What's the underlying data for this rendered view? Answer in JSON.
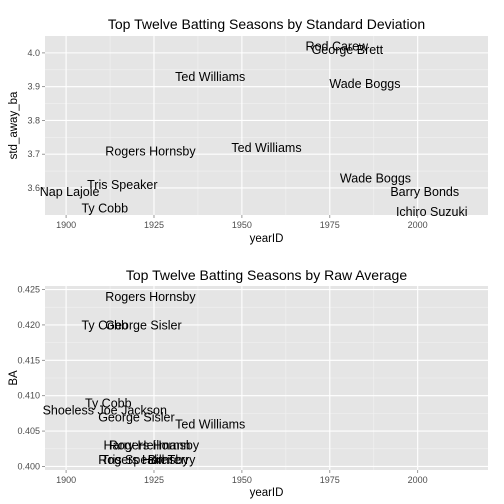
{
  "chart_data": [
    {
      "type": "scatter",
      "title": "Top Twelve Batting Seasons by Standard Deviation",
      "xlabel": "yearID",
      "ylabel": "std_away_ba",
      "xlim": [
        1894,
        2020
      ],
      "ylim": [
        3.52,
        4.05
      ],
      "x_ticks": [
        1900,
        1925,
        1950,
        1975,
        2000
      ],
      "y_ticks": [
        3.6,
        3.7,
        3.8,
        3.9,
        4.0
      ],
      "y_tick_labels": [
        "3.6",
        "3.7",
        "3.8",
        "3.9",
        "4.0"
      ],
      "grid": true,
      "points": [
        {
          "label": "Rod Carew",
          "x": 1977,
          "y": 4.02
        },
        {
          "label": "George Brett",
          "x": 1980,
          "y": 4.01
        },
        {
          "label": "Ted Williams",
          "x": 1941,
          "y": 3.93
        },
        {
          "label": "Wade Boggs",
          "x": 1985,
          "y": 3.91
        },
        {
          "label": "Rogers Hornsby",
          "x": 1924,
          "y": 3.71
        },
        {
          "label": "Ted Williams",
          "x": 1957,
          "y": 3.72
        },
        {
          "label": "Wade Boggs",
          "x": 1988,
          "y": 3.63
        },
        {
          "label": "Tris Speaker",
          "x": 1916,
          "y": 3.61
        },
        {
          "label": "Barry Bonds",
          "x": 2002,
          "y": 3.59
        },
        {
          "label": "Nap Lajoie",
          "x": 1901,
          "y": 3.59
        },
        {
          "label": "Ty Cobb",
          "x": 1911,
          "y": 3.54
        },
        {
          "label": "Ichiro Suzuki",
          "x": 2004,
          "y": 3.53
        }
      ]
    },
    {
      "type": "scatter",
      "title": "Top Twelve Batting Seasons by Raw Average",
      "xlabel": "yearID",
      "ylabel": "BA",
      "xlim": [
        1894,
        2020
      ],
      "ylim": [
        0.3995,
        0.4255
      ],
      "x_ticks": [
        1900,
        1925,
        1950,
        1975,
        2000
      ],
      "y_ticks": [
        0.4,
        0.405,
        0.41,
        0.415,
        0.42,
        0.425
      ],
      "y_tick_labels": [
        "0.400",
        "0.405",
        "0.410",
        "0.415",
        "0.420",
        "0.425"
      ],
      "grid": true,
      "points": [
        {
          "label": "Rogers Hornsby",
          "x": 1924,
          "y": 0.424
        },
        {
          "label": "Ty Cobb",
          "x": 1911,
          "y": 0.42
        },
        {
          "label": "George Sisler",
          "x": 1922,
          "y": 0.42
        },
        {
          "label": "Ty Cobb",
          "x": 1912,
          "y": 0.409
        },
        {
          "label": "Shoeless Joe Jackson",
          "x": 1911,
          "y": 0.408
        },
        {
          "label": "George Sisler",
          "x": 1920,
          "y": 0.407
        },
        {
          "label": "Ted Williams",
          "x": 1941,
          "y": 0.406
        },
        {
          "label": "Rogers Hornsby",
          "x": 1922,
          "y": 0.401
        },
        {
          "label": "Harry Heilmann",
          "x": 1923,
          "y": 0.403
        },
        {
          "label": "Rogers Hornsby",
          "x": 1925,
          "y": 0.403
        },
        {
          "label": "Tris Speaker",
          "x": 1920,
          "y": 0.401
        },
        {
          "label": "Bill Terry",
          "x": 1930,
          "y": 0.401
        }
      ]
    }
  ]
}
